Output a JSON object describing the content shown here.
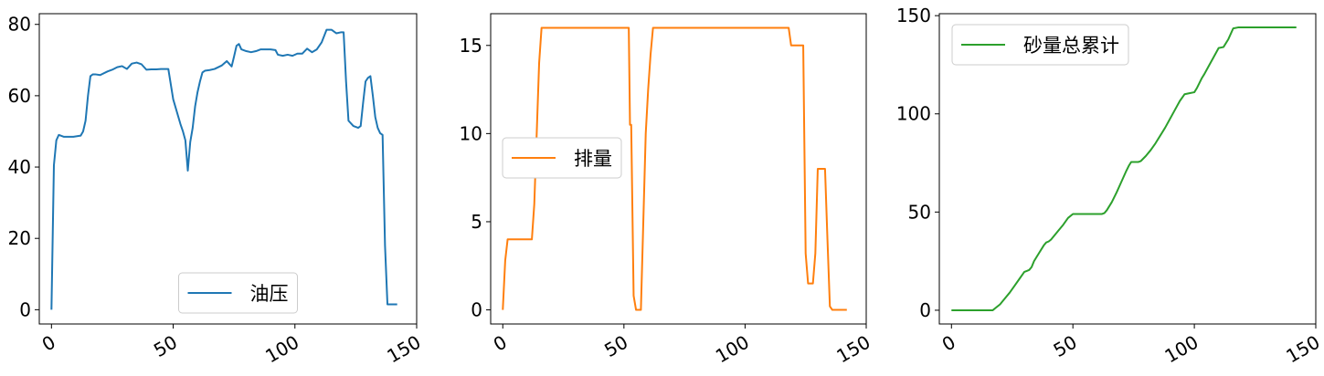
{
  "chart_data": [
    {
      "type": "line",
      "title": "",
      "xlabel": "",
      "ylabel": "",
      "xlim": [
        -5,
        150
      ],
      "ylim": [
        -4,
        83
      ],
      "xticks": [
        "0",
        "50",
        "100",
        "150"
      ],
      "xtick_values": [
        0,
        50,
        100,
        150
      ],
      "yticks": [
        "0",
        "20",
        "40",
        "60",
        "80"
      ],
      "ytick_values": [
        0,
        20,
        40,
        60,
        80
      ],
      "legend_position": "lower center",
      "grid": false,
      "series": [
        {
          "name": "油压",
          "color": "#1f77b4",
          "x": [
            0,
            1,
            2,
            3,
            5,
            7,
            9,
            12,
            13,
            14,
            15,
            16,
            17,
            18,
            20,
            23,
            25,
            27,
            29,
            31,
            33,
            35,
            37,
            39,
            41,
            43,
            45,
            48,
            50,
            53,
            54,
            55,
            56,
            57,
            58,
            59,
            60,
            61,
            62,
            63,
            65,
            67,
            70,
            72,
            74,
            75,
            76,
            77,
            78,
            80,
            82,
            84,
            86,
            88,
            90,
            92,
            93,
            95,
            97,
            99,
            101,
            103,
            105,
            107,
            109,
            111,
            113,
            115,
            117,
            119,
            120,
            121,
            122,
            124,
            126,
            127,
            128,
            129,
            130,
            131,
            132,
            133,
            134,
            135,
            136,
            137,
            138,
            139,
            140,
            141,
            142
          ],
          "y": [
            0,
            40.5,
            47.5,
            49,
            48.5,
            48.5,
            48.5,
            48.8,
            50,
            53,
            60,
            65.5,
            66,
            66,
            65.8,
            66.8,
            67.3,
            68,
            68.3,
            67.5,
            69,
            69.3,
            68.8,
            67.3,
            67.4,
            67.4,
            67.5,
            67.5,
            59,
            52,
            50,
            47.5,
            39,
            47,
            51,
            57,
            61,
            64,
            66.5,
            67,
            67.2,
            67.5,
            68.5,
            69.7,
            68.2,
            71,
            74,
            74.5,
            73,
            72.5,
            72.2,
            72.5,
            73,
            73,
            73,
            72.8,
            71.5,
            71.2,
            71.5,
            71.2,
            71.8,
            71.8,
            73.2,
            72.2,
            73,
            75,
            78.5,
            78.5,
            77.5,
            77.8,
            77.8,
            64,
            53,
            51.5,
            51,
            51.5,
            58,
            64,
            65,
            65.5,
            60,
            54,
            51,
            49.5,
            49,
            18,
            1.5,
            1.5,
            1.5,
            1.5,
            1.5
          ],
          "x_max": 142
        }
      ]
    },
    {
      "type": "line",
      "title": "",
      "xlabel": "",
      "ylabel": "",
      "xlim": [
        -5,
        150
      ],
      "ylim": [
        -0.8,
        16.8
      ],
      "xticks": [
        "0",
        "50",
        "100",
        "150"
      ],
      "xtick_values": [
        0,
        50,
        100,
        150
      ],
      "yticks": [
        "0",
        "5",
        "10",
        "15"
      ],
      "ytick_values": [
        0,
        5,
        10,
        15
      ],
      "legend_position": "center left",
      "grid": false,
      "series": [
        {
          "name": "排量",
          "color": "#ff7f0e",
          "x": [
            0,
            1,
            2,
            5,
            8,
            12,
            13,
            14,
            15,
            16,
            17,
            20,
            30,
            40,
            52,
            52.5,
            53,
            54,
            55,
            56,
            57,
            58,
            59,
            60,
            61,
            62,
            63,
            65,
            70,
            80,
            90,
            100,
            110,
            118,
            119,
            120,
            121,
            122,
            123,
            124,
            125,
            126,
            127,
            128,
            129,
            130,
            131,
            132,
            133,
            134,
            135,
            136,
            137,
            138,
            139,
            140,
            141,
            142
          ],
          "y": [
            0,
            2.8,
            4,
            4,
            4,
            4,
            6,
            10,
            14,
            16,
            16,
            16,
            16,
            16,
            16,
            10.5,
            10.5,
            0.8,
            0,
            0,
            0,
            5,
            10,
            12.5,
            14.5,
            16,
            16,
            16,
            16,
            16,
            16,
            16,
            16,
            16,
            15,
            15,
            15,
            15,
            15,
            15,
            3.2,
            1.5,
            1.5,
            1.5,
            3.2,
            8,
            8,
            8,
            8,
            4,
            0.2,
            0,
            0,
            0,
            0,
            0,
            0,
            0
          ],
          "x_max": 142
        }
      ]
    },
    {
      "type": "line",
      "title": "",
      "xlabel": "",
      "ylabel": "",
      "xlim": [
        -5,
        150
      ],
      "ylim": [
        -7,
        151
      ],
      "xticks": [
        "0",
        "50",
        "100",
        "150"
      ],
      "xtick_values": [
        0,
        50,
        100,
        150
      ],
      "yticks": [
        "0",
        "50",
        "100",
        "150"
      ],
      "ytick_values": [
        0,
        50,
        100,
        150
      ],
      "legend_position": "upper left",
      "grid": false,
      "series": [
        {
          "name": "砂量总累计",
          "color": "#2ca02c",
          "x": [
            0,
            17,
            18,
            20,
            22,
            24,
            26,
            28,
            30,
            31,
            32,
            33,
            34,
            36,
            38,
            39,
            40,
            41,
            42,
            44,
            46,
            48,
            50,
            52,
            62,
            63,
            64,
            66,
            68,
            70,
            72,
            73,
            74,
            75,
            76,
            77,
            78,
            80,
            82,
            84,
            86,
            88,
            90,
            92,
            94,
            96,
            98,
            100,
            101,
            102,
            103,
            104,
            106,
            108,
            110,
            112,
            114,
            116,
            118,
            142
          ],
          "y": [
            0,
            0,
            1,
            3,
            6,
            9,
            12.5,
            16,
            19.5,
            20,
            20.5,
            22,
            25,
            29,
            33,
            34.5,
            35,
            36,
            37.5,
            40.5,
            43.5,
            47,
            49,
            49,
            49,
            49.5,
            51,
            55,
            60,
            65.5,
            71,
            73.5,
            75.5,
            75.5,
            75.5,
            75.5,
            76,
            78.5,
            81.5,
            85,
            89,
            93,
            97.5,
            102,
            106.5,
            110,
            110.5,
            111,
            113,
            115.5,
            118,
            120,
            124.5,
            129,
            133.5,
            134,
            138,
            143.5,
            144,
            144
          ],
          "x_max": 142
        }
      ]
    }
  ]
}
